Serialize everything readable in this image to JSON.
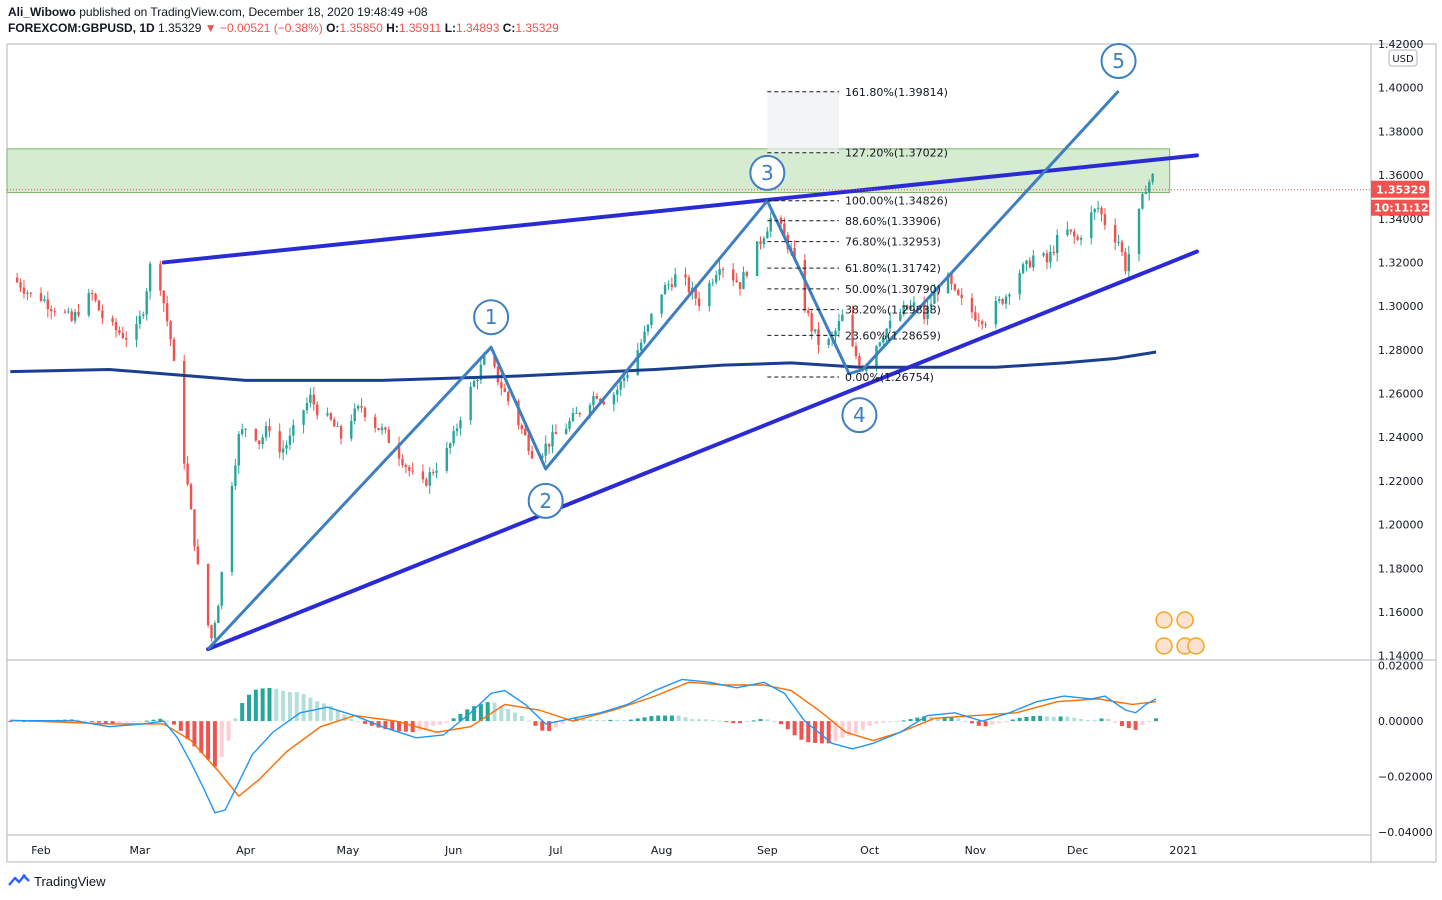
{
  "header": {
    "author": "Ali_Wibowo",
    "published_text": "published on TradingView.com, December 18, 2020 19:48:49 +08",
    "symbol": "FOREXCOM:GBPUSD, 1D",
    "last": "1.35329",
    "change": "−0.00521 (−0.38%)",
    "o_label": "O:",
    "o": "1.35850",
    "h_label": "H:",
    "h": "1.35911",
    "l_label": "L:",
    "l": "1.34893",
    "c_label": "C:",
    "c": "1.35329"
  },
  "footer": {
    "brand": "TradingView"
  },
  "colors": {
    "up": "#26a69a",
    "down": "#ef5350",
    "wave": "#3d7fc1",
    "channel": "#2b2bd6",
    "ma": "#1a3f8f",
    "zone": "#c8e6c0",
    "macd": "#2196f3",
    "signal": "#ff6d00",
    "price_tag": "#ef5350"
  },
  "chart_data": [
    {
      "type": "candlestick",
      "symbol": "FOREXCOM:GBPUSD",
      "timeframe": "1D",
      "currency_label": "USD",
      "price_tag": "1.35329",
      "countdown_tag": "10:11:12",
      "y_ticks": [
        "1.42000",
        "1.40000",
        "1.38000",
        "1.36000",
        "1.34000",
        "1.32000",
        "1.30000",
        "1.28000",
        "1.26000",
        "1.24000",
        "1.22000",
        "1.20000",
        "1.18000",
        "1.16000",
        "1.14000"
      ],
      "ylim": [
        1.138,
        1.42
      ],
      "x_ticks": [
        "Feb",
        "Mar",
        "Apr",
        "May",
        "Jun",
        "Jul",
        "Aug",
        "Sep",
        "Oct",
        "Nov",
        "Dec",
        "2021"
      ],
      "x_tick_days": [
        0,
        29,
        60,
        90,
        121,
        151,
        182,
        213,
        243,
        274,
        304,
        335
      ],
      "close_path": [
        [
          -9,
          1.313
        ],
        [
          -6,
          1.31
        ],
        [
          -3,
          1.305
        ],
        [
          0,
          1.304
        ],
        [
          3,
          1.3
        ],
        [
          6,
          1.298
        ],
        [
          9,
          1.293
        ],
        [
          12,
          1.301
        ],
        [
          15,
          1.305
        ],
        [
          18,
          1.295
        ],
        [
          21,
          1.29
        ],
        [
          24,
          1.287
        ],
        [
          27,
          1.284
        ],
        [
          30,
          1.299
        ],
        [
          32,
          1.318
        ],
        [
          35,
          1.31
        ],
        [
          38,
          1.285
        ],
        [
          40,
          1.26
        ],
        [
          42,
          1.23
        ],
        [
          44,
          1.205
        ],
        [
          46,
          1.18
        ],
        [
          48,
          1.16
        ],
        [
          50,
          1.148
        ],
        [
          52,
          1.165
        ],
        [
          54,
          1.19
        ],
        [
          56,
          1.22
        ],
        [
          58,
          1.24
        ],
        [
          61,
          1.247
        ],
        [
          64,
          1.238
        ],
        [
          67,
          1.245
        ],
        [
          70,
          1.233
        ],
        [
          73,
          1.239
        ],
        [
          76,
          1.25
        ],
        [
          79,
          1.258
        ],
        [
          82,
          1.25
        ],
        [
          85,
          1.247
        ],
        [
          88,
          1.24
        ],
        [
          91,
          1.249
        ],
        [
          94,
          1.254
        ],
        [
          97,
          1.247
        ],
        [
          100,
          1.243
        ],
        [
          103,
          1.237
        ],
        [
          106,
          1.23
        ],
        [
          109,
          1.222
        ],
        [
          112,
          1.218
        ],
        [
          115,
          1.225
        ],
        [
          118,
          1.23
        ],
        [
          121,
          1.24
        ],
        [
          124,
          1.255
        ],
        [
          127,
          1.265
        ],
        [
          130,
          1.275
        ],
        [
          133,
          1.27
        ],
        [
          136,
          1.26
        ],
        [
          139,
          1.25
        ],
        [
          142,
          1.24
        ],
        [
          145,
          1.23
        ],
        [
          148,
          1.236
        ],
        [
          151,
          1.241
        ],
        [
          154,
          1.245
        ],
        [
          157,
          1.25
        ],
        [
          160,
          1.256
        ],
        [
          163,
          1.26
        ],
        [
          166,
          1.256
        ],
        [
          169,
          1.262
        ],
        [
          172,
          1.27
        ],
        [
          175,
          1.28
        ],
        [
          178,
          1.29
        ],
        [
          181,
          1.305
        ],
        [
          184,
          1.31
        ],
        [
          187,
          1.315
        ],
        [
          190,
          1.308
        ],
        [
          193,
          1.302
        ],
        [
          196,
          1.31
        ],
        [
          199,
          1.32
        ],
        [
          202,
          1.315
        ],
        [
          205,
          1.31
        ],
        [
          208,
          1.32
        ],
        [
          211,
          1.33
        ],
        [
          214,
          1.34
        ],
        [
          217,
          1.335
        ],
        [
          220,
          1.325
        ],
        [
          223,
          1.305
        ],
        [
          226,
          1.29
        ],
        [
          229,
          1.28
        ],
        [
          232,
          1.285
        ],
        [
          235,
          1.295
        ],
        [
          238,
          1.28
        ],
        [
          241,
          1.272
        ],
        [
          244,
          1.28
        ],
        [
          247,
          1.288
        ],
        [
          250,
          1.293
        ],
        [
          253,
          1.298
        ],
        [
          256,
          1.3
        ],
        [
          259,
          1.295
        ],
        [
          262,
          1.305
        ],
        [
          265,
          1.315
        ],
        [
          268,
          1.305
        ],
        [
          271,
          1.3
        ],
        [
          274,
          1.296
        ],
        [
          277,
          1.294
        ],
        [
          280,
          1.3
        ],
        [
          283,
          1.305
        ],
        [
          286,
          1.315
        ],
        [
          289,
          1.318
        ],
        [
          292,
          1.325
        ],
        [
          295,
          1.32
        ],
        [
          298,
          1.33
        ],
        [
          301,
          1.334
        ],
        [
          304,
          1.33
        ],
        [
          307,
          1.34
        ],
        [
          310,
          1.345
        ],
        [
          313,
          1.335
        ],
        [
          316,
          1.33
        ],
        [
          318,
          1.318
        ],
        [
          320,
          1.33
        ],
        [
          322,
          1.342
        ],
        [
          324,
          1.355
        ],
        [
          326,
          1.359
        ],
        [
          327,
          1.3533
        ]
      ],
      "moving_average": [
        [
          -9,
          1.27
        ],
        [
          20,
          1.271
        ],
        [
          60,
          1.266
        ],
        [
          100,
          1.266
        ],
        [
          140,
          1.268
        ],
        [
          180,
          1.271
        ],
        [
          200,
          1.273
        ],
        [
          220,
          1.274
        ],
        [
          240,
          1.272
        ],
        [
          260,
          1.272
        ],
        [
          280,
          1.272
        ],
        [
          300,
          1.274
        ],
        [
          315,
          1.276
        ],
        [
          327,
          1.279
        ]
      ],
      "supply_zone": {
        "top": 1.372,
        "bottom": 1.352,
        "end_day": 331
      },
      "channel_upper": [
        [
          36,
          1.32
        ],
        [
          339,
          1.369
        ]
      ],
      "channel_lower": [
        [
          49,
          1.143
        ],
        [
          339,
          1.325
        ]
      ],
      "waves": [
        {
          "label": "1",
          "day": 132,
          "price": 1.2812
        },
        {
          "label": "2",
          "day": 148,
          "price": 1.2255
        },
        {
          "label": "3",
          "day": 213,
          "price": 1.3482
        },
        {
          "label": "4",
          "day": 240,
          "price": 1.2675
        },
        {
          "label": "5",
          "day": 316,
          "price": 1.3985
        }
      ],
      "wave_path": [
        [
          49,
          1.143
        ],
        [
          132,
          1.2812
        ],
        [
          148,
          1.2255
        ],
        [
          213,
          1.3482
        ],
        [
          237,
          1.269
        ],
        [
          241,
          1.271
        ],
        [
          316,
          1.3985
        ]
      ],
      "fibonacci": [
        {
          "label": "161.80%(1.39814)",
          "price": 1.39814
        },
        {
          "label": "127.20%(1.37022)",
          "price": 1.37022
        },
        {
          "label": "100.00%(1.34826)",
          "price": 1.34826
        },
        {
          "label": "88.60%(1.33906)",
          "price": 1.33906
        },
        {
          "label": "76.80%(1.32953)",
          "price": 1.32953
        },
        {
          "label": "61.80%(1.31742)",
          "price": 1.31742
        },
        {
          "label": "50.00%(1.30790)",
          "price": 1.3079
        },
        {
          "label": "38.20%(1.29838)",
          "price": 1.29838
        },
        {
          "label": "23.60%(1.28659)",
          "price": 1.28659
        },
        {
          "label": "0.00%(1.26754)",
          "price": 1.26754
        }
      ],
      "fib_range_days": [
        213,
        234
      ]
    },
    {
      "type": "macd",
      "y_ticks": [
        "0.02000",
        "0.00000",
        "−0.02000",
        "−0.04000"
      ],
      "ylim": [
        -0.041,
        0.022
      ],
      "macd_line": [
        [
          -9,
          0.0002
        ],
        [
          10,
          0.0001
        ],
        [
          20,
          -0.002
        ],
        [
          30,
          -0.001
        ],
        [
          36,
          0.0
        ],
        [
          40,
          -0.006
        ],
        [
          44,
          -0.015
        ],
        [
          48,
          -0.025
        ],
        [
          51,
          -0.033
        ],
        [
          54,
          -0.032
        ],
        [
          58,
          -0.022
        ],
        [
          62,
          -0.012
        ],
        [
          68,
          -0.004
        ],
        [
          76,
          0.003
        ],
        [
          84,
          0.005
        ],
        [
          92,
          0.002
        ],
        [
          100,
          -0.002
        ],
        [
          110,
          -0.006
        ],
        [
          118,
          -0.005
        ],
        [
          126,
          0.003
        ],
        [
          132,
          0.01
        ],
        [
          136,
          0.011
        ],
        [
          142,
          0.006
        ],
        [
          148,
          -0.001
        ],
        [
          156,
          0.001
        ],
        [
          164,
          0.003
        ],
        [
          172,
          0.006
        ],
        [
          180,
          0.011
        ],
        [
          188,
          0.015
        ],
        [
          196,
          0.014
        ],
        [
          204,
          0.012
        ],
        [
          212,
          0.014
        ],
        [
          218,
          0.01
        ],
        [
          224,
          0.0
        ],
        [
          232,
          -0.008
        ],
        [
          238,
          -0.01
        ],
        [
          244,
          -0.008
        ],
        [
          252,
          -0.004
        ],
        [
          260,
          0.002
        ],
        [
          268,
          0.003
        ],
        [
          276,
          0.0
        ],
        [
          284,
          0.003
        ],
        [
          292,
          0.007
        ],
        [
          300,
          0.009
        ],
        [
          308,
          0.008
        ],
        [
          312,
          0.009
        ],
        [
          318,
          0.004
        ],
        [
          321,
          0.003
        ],
        [
          324,
          0.006
        ],
        [
          327,
          0.008
        ]
      ],
      "signal_line": [
        [
          -9,
          0.0003
        ],
        [
          20,
          -0.001
        ],
        [
          36,
          -0.001
        ],
        [
          44,
          -0.007
        ],
        [
          52,
          -0.018
        ],
        [
          58,
          -0.027
        ],
        [
          64,
          -0.021
        ],
        [
          72,
          -0.011
        ],
        [
          82,
          -0.002
        ],
        [
          92,
          0.002
        ],
        [
          104,
          0.0
        ],
        [
          116,
          -0.004
        ],
        [
          126,
          -0.002
        ],
        [
          136,
          0.006
        ],
        [
          146,
          0.004
        ],
        [
          156,
          0.0
        ],
        [
          168,
          0.004
        ],
        [
          180,
          0.009
        ],
        [
          190,
          0.014
        ],
        [
          200,
          0.013
        ],
        [
          212,
          0.013
        ],
        [
          220,
          0.011
        ],
        [
          228,
          0.004
        ],
        [
          236,
          -0.004
        ],
        [
          244,
          -0.007
        ],
        [
          252,
          -0.004
        ],
        [
          262,
          0.001
        ],
        [
          274,
          0.002
        ],
        [
          286,
          0.003
        ],
        [
          298,
          0.007
        ],
        [
          310,
          0.008
        ],
        [
          320,
          0.006
        ],
        [
          327,
          0.007
        ]
      ],
      "histogram_step_days": 2
    }
  ]
}
